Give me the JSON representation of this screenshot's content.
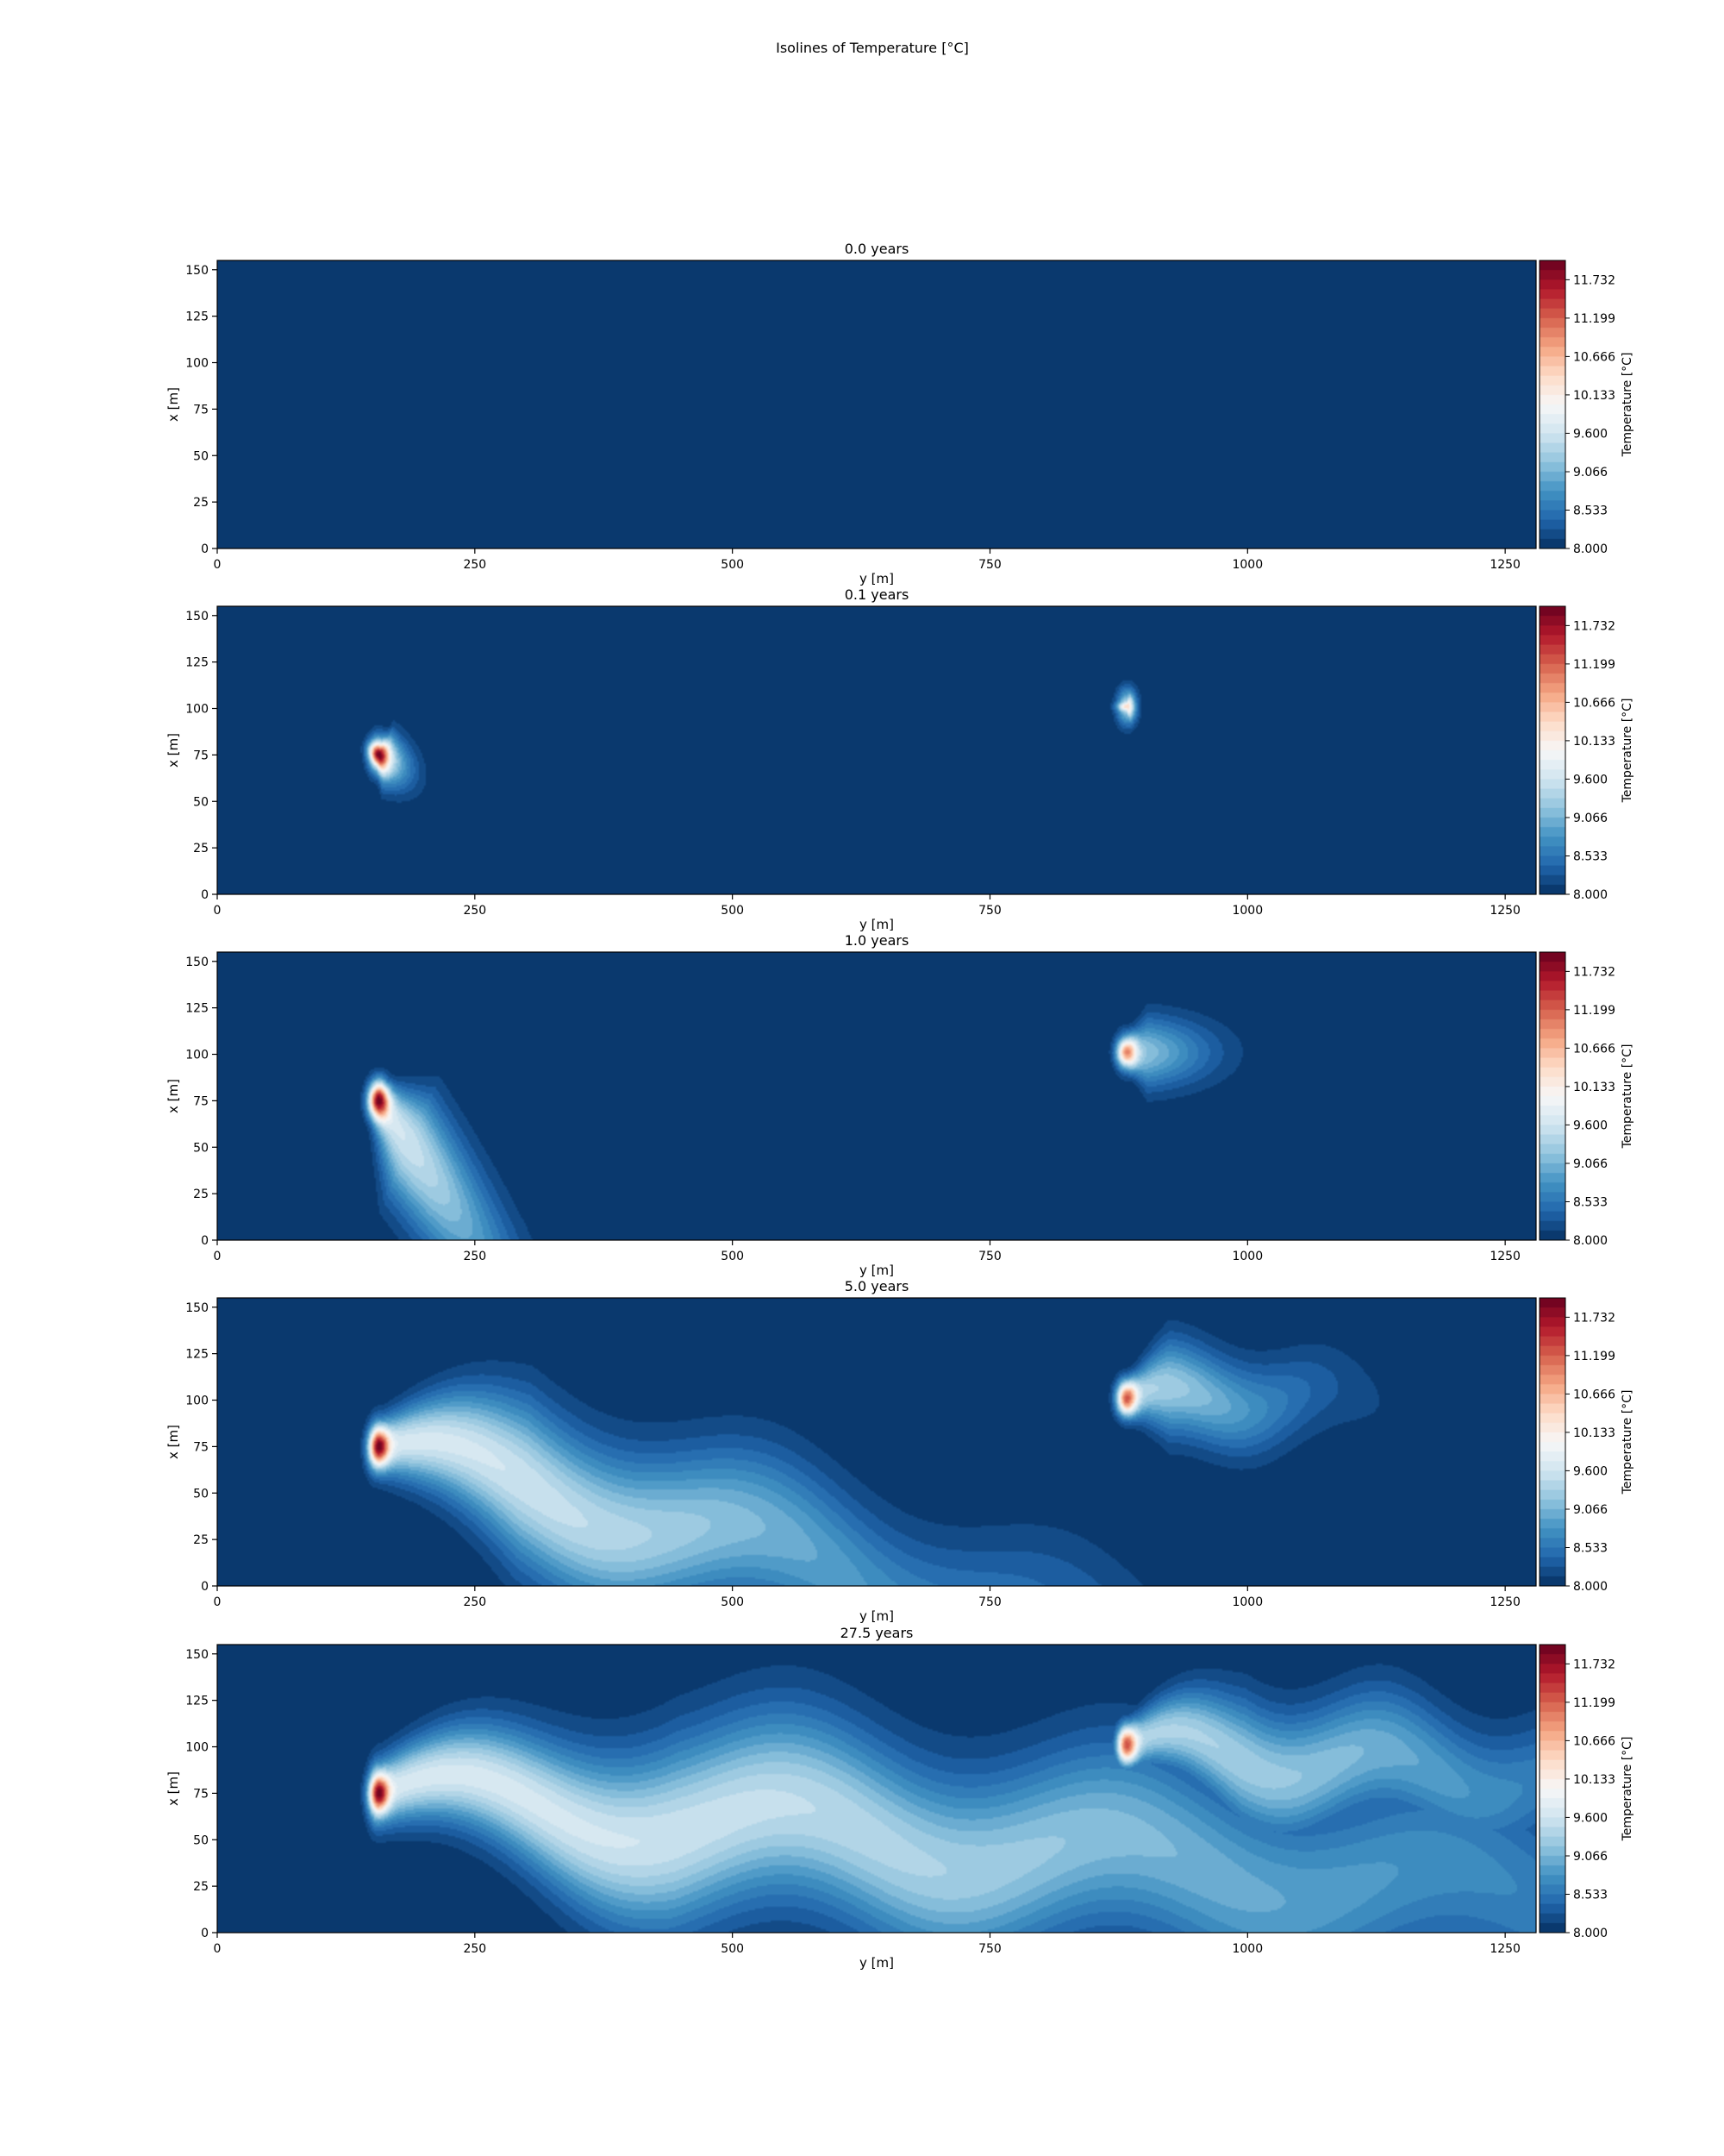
{
  "figure": {
    "suptitle": "Isolines of Temperature [°C]"
  },
  "colorbar": {
    "label": "Temperature [°C]",
    "tick_labels": [
      "8.000",
      "8.533",
      "9.066",
      "9.600",
      "10.133",
      "10.666",
      "11.199",
      "11.732"
    ],
    "ticks": [
      8.0,
      8.533,
      9.066,
      9.6,
      10.133,
      10.666,
      11.199,
      11.732
    ],
    "range": [
      8.0,
      12.0
    ],
    "levels": 30,
    "colormap": "RdBu_r",
    "palette": [
      "#053061",
      "#2166ac",
      "#4393c3",
      "#92c5de",
      "#d1e5f0",
      "#f7f7f7",
      "#fddbc7",
      "#f4a582",
      "#d6604d",
      "#b2182b",
      "#67001f"
    ]
  },
  "chart_data": [
    {
      "type": "heatmap",
      "title": "0.0 years",
      "xlabel": "y [m]",
      "ylabel": "x [m]",
      "xlim": [
        0,
        1280
      ],
      "ylim": [
        0,
        155
      ],
      "xticks": [
        "0",
        "250",
        "500",
        "750",
        "1000",
        "1250"
      ],
      "yticks": [
        "0",
        "25",
        "50",
        "75",
        "100",
        "125",
        "150"
      ],
      "background_value": 8.0,
      "plumes": []
    },
    {
      "type": "heatmap",
      "title": "0.1 years",
      "xlabel": "y [m]",
      "ylabel": "x [m]",
      "xlim": [
        0,
        1280
      ],
      "ylim": [
        0,
        155
      ],
      "xticks": [
        "0",
        "250",
        "500",
        "750",
        "1000",
        "1250"
      ],
      "yticks": [
        "0",
        "25",
        "50",
        "75",
        "100",
        "125",
        "150"
      ],
      "background_value": 8.0,
      "plumes": [
        {
          "source": [
            157,
            75
          ],
          "peak": 12.0,
          "length": 30,
          "dir": [
            1,
            -0.3
          ],
          "spread": 14,
          "wave_amp": 0,
          "wave_len": 200
        },
        {
          "source": [
            883,
            101
          ],
          "peak": 10.4,
          "length": 6,
          "dir": [
            1,
            0
          ],
          "spread": 6,
          "wave_amp": 0,
          "wave_len": 200
        }
      ]
    },
    {
      "type": "heatmap",
      "title": "1.0 years",
      "xlabel": "y [m]",
      "ylabel": "x [m]",
      "xlim": [
        0,
        1280
      ],
      "ylim": [
        0,
        155
      ],
      "xticks": [
        "0",
        "250",
        "500",
        "750",
        "1000",
        "1250"
      ],
      "yticks": [
        "0",
        "25",
        "50",
        "75",
        "100",
        "125",
        "150"
      ],
      "background_value": 8.0,
      "plumes": [
        {
          "source": [
            157,
            75
          ],
          "peak": 12.0,
          "length": 150,
          "dir": [
            0.75,
            -0.6
          ],
          "spread": 30,
          "wave_amp": 0,
          "wave_len": 200
        },
        {
          "source": [
            883,
            101
          ],
          "peak": 11.0,
          "length": 75,
          "dir": [
            1,
            0
          ],
          "spread": 18,
          "wave_amp": 0,
          "wave_len": 200
        }
      ]
    },
    {
      "type": "heatmap",
      "title": "5.0 years",
      "xlabel": "y [m]",
      "ylabel": "x [m]",
      "xlim": [
        0,
        1280
      ],
      "ylim": [
        0,
        155
      ],
      "xticks": [
        "0",
        "250",
        "500",
        "750",
        "1000",
        "1250"
      ],
      "yticks": [
        "0",
        "25",
        "50",
        "75",
        "100",
        "125",
        "150"
      ],
      "background_value": 8.0,
      "plumes": [
        {
          "source": [
            157,
            75
          ],
          "peak": 12.0,
          "length": 560,
          "dir": [
            1,
            -0.15
          ],
          "spread": 40,
          "wave_amp": 12,
          "wave_len": 300
        },
        {
          "source": [
            883,
            101
          ],
          "peak": 11.3,
          "length": 160,
          "dir": [
            1,
            0
          ],
          "spread": 24,
          "wave_amp": 6,
          "wave_len": 160
        }
      ]
    },
    {
      "type": "heatmap",
      "title": "27.5 years",
      "xlabel": "y [m]",
      "ylabel": "x [m]",
      "xlim": [
        0,
        1280
      ],
      "ylim": [
        0,
        155
      ],
      "xticks": [
        "0",
        "250",
        "500",
        "750",
        "1000",
        "1250"
      ],
      "yticks": [
        "0",
        "25",
        "50",
        "75",
        "100",
        "125",
        "150"
      ],
      "background_value": 8.0,
      "plumes": [
        {
          "source": [
            157,
            75
          ],
          "peak": 12.0,
          "length": 1150,
          "dir": [
            1,
            -0.05
          ],
          "spread": 48,
          "wave_amp": 14,
          "wave_len": 320
        },
        {
          "source": [
            883,
            101
          ],
          "peak": 11.3,
          "length": 450,
          "dir": [
            1,
            -0.05
          ],
          "spread": 32,
          "wave_amp": 10,
          "wave_len": 200
        }
      ]
    }
  ]
}
